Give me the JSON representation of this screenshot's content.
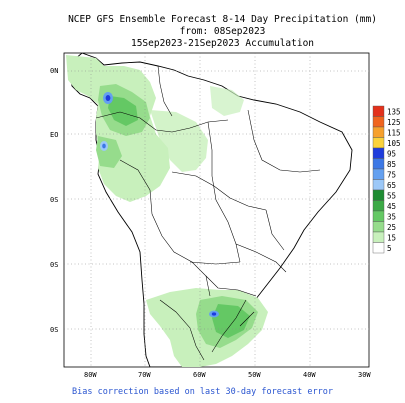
{
  "title": {
    "line1": "NCEP GFS Ensemble Forecast 8-14 Day Precipitation (mm)",
    "line2": "from: 08Sep2023",
    "line3": "15Sep2023-21Sep2023 Accumulation"
  },
  "map": {
    "lat_labels": [
      "0N",
      "EO",
      "0S",
      "0S",
      "0S"
    ],
    "lon_labels": [
      "80W",
      "70W",
      "60W",
      "50W",
      "40W",
      "30W"
    ],
    "grid": "dotted",
    "region": "South America"
  },
  "legend": {
    "position": "right",
    "levels": [
      {
        "value": "135",
        "color": "#e3311b"
      },
      {
        "value": "125",
        "color": "#f0641e"
      },
      {
        "value": "115",
        "color": "#f6a02c"
      },
      {
        "value": "105",
        "color": "#fad23c"
      },
      {
        "value": "95",
        "color": "#1e3cdc"
      },
      {
        "value": "85",
        "color": "#3c78e6"
      },
      {
        "value": "75",
        "color": "#64a0f0"
      },
      {
        "value": "65",
        "color": "#9cc8f8"
      },
      {
        "value": "55",
        "color": "#1e8c32"
      },
      {
        "value": "45",
        "color": "#3caa46"
      },
      {
        "value": "35",
        "color": "#64c864"
      },
      {
        "value": "25",
        "color": "#96dc8c"
      },
      {
        "value": "15",
        "color": "#c8f0bc"
      },
      {
        "value": "5",
        "color": "#ffffff"
      }
    ]
  },
  "footer": "Bias correction based on last 30-day forecast error"
}
